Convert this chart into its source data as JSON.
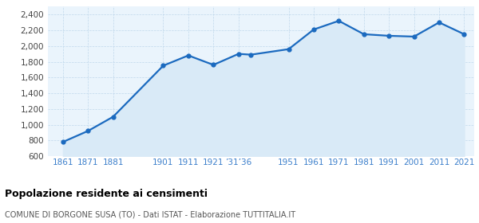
{
  "years": [
    1861,
    1871,
    1881,
    1901,
    1911,
    1921,
    1931,
    1936,
    1951,
    1961,
    1971,
    1981,
    1991,
    2001,
    2011,
    2021
  ],
  "population": [
    780,
    920,
    1100,
    1750,
    1880,
    1760,
    1900,
    1890,
    1960,
    2210,
    2320,
    2150,
    2130,
    2120,
    2300,
    2150
  ],
  "line_color": "#1b6abf",
  "fill_color": "#d9eaf7",
  "marker_color": "#1b6abf",
  "background_color": "#eaf4fc",
  "grid_color": "#c0d8ec",
  "tick_color": "#3b7fcb",
  "title": "Popolazione residente ai censimenti",
  "subtitle": "COMUNE DI BORGONE SUSA (TO) - Dati ISTAT - Elaborazione TUTTITALIA.IT",
  "ylim": [
    600,
    2500
  ],
  "yticks": [
    600,
    800,
    1000,
    1200,
    1400,
    1600,
    1800,
    2000,
    2200,
    2400
  ],
  "xtick_positions": [
    1861,
    1871,
    1881,
    1901,
    1911,
    1921,
    1931,
    1951,
    1961,
    1971,
    1981,
    1991,
    2001,
    2011,
    2021
  ],
  "xtick_labels": [
    "1861",
    "1871",
    "1881",
    "1901",
    "1911",
    "1921",
    "’31’36",
    "1951",
    "1961",
    "1971",
    "1981",
    "1991",
    "2001",
    "2011",
    "2021"
  ],
  "xlim": [
    1855,
    2025
  ]
}
